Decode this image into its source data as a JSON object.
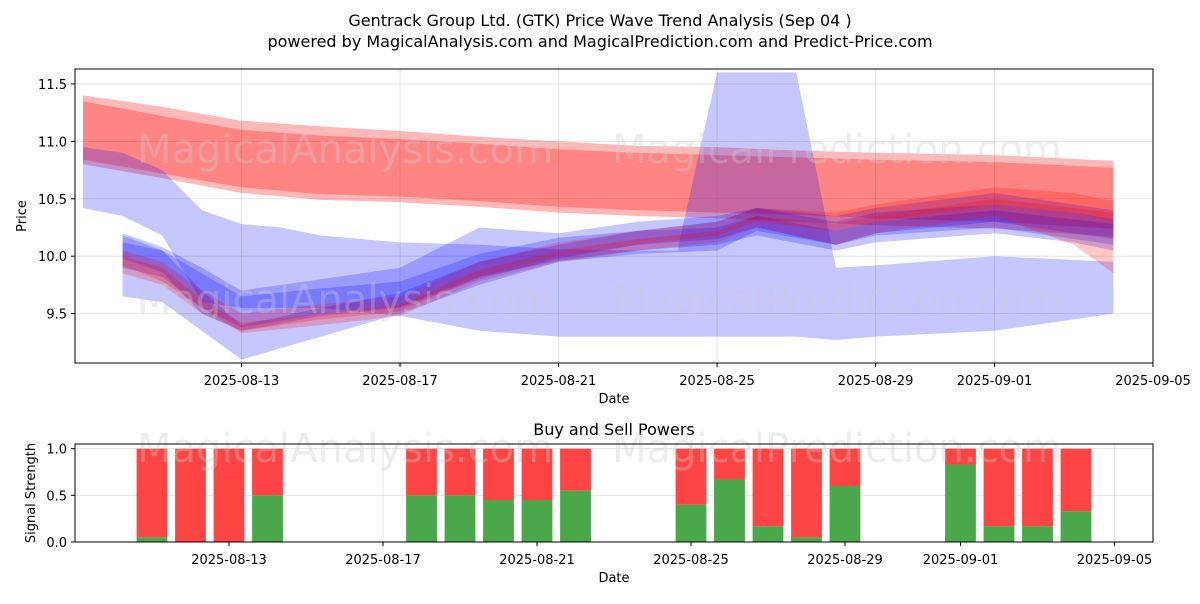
{
  "title": "Gentrack Group Ltd. (GTK) Price Wave Trend Analysis (Sep 04 )",
  "subtitle": "powered by MagicalAnalysis.com and MagicalPrediction.com and Predict-Price.com",
  "watermarks": [
    "MagicalAnalysis.com",
    "MagicalPrediction.com"
  ],
  "colors": {
    "red": "#ff0000",
    "blue": "#0000ff",
    "buy": "#4aa84a",
    "sell": "#ff4444"
  },
  "chart_data": [
    {
      "type": "area",
      "title": "",
      "xlabel": "Date",
      "ylabel": "Price",
      "xlim": [
        "2025-08-09",
        "2025-09-05"
      ],
      "ylim": [
        9.07,
        11.63
      ],
      "yticks": [
        9.5,
        10.0,
        10.5,
        11.0,
        11.5
      ],
      "ytick_labels": [
        "9.5",
        "10.0",
        "10.5",
        "11.0",
        "11.5"
      ],
      "xticks": [
        "2025-08-13",
        "2025-08-17",
        "2025-08-21",
        "2025-08-25",
        "2025-08-29",
        "2025-09-01",
        "2025-09-05"
      ],
      "grid": true,
      "series": [
        {
          "color": "red",
          "x": [
            "2025-08-09",
            "2025-08-11",
            "2025-08-13",
            "2025-08-15",
            "2025-08-17",
            "2025-08-19",
            "2025-08-21",
            "2025-08-23",
            "2025-08-25",
            "2025-08-27",
            "2025-08-29",
            "2025-09-01",
            "2025-09-04"
          ],
          "upper": [
            11.4,
            11.3,
            11.18,
            11.13,
            11.09,
            11.04,
            11.0,
            10.96,
            10.95,
            10.92,
            10.9,
            10.88,
            10.83
          ],
          "lower": [
            10.8,
            10.68,
            10.55,
            10.49,
            10.47,
            10.43,
            10.38,
            10.35,
            10.33,
            10.3,
            10.27,
            10.24,
            10.17
          ]
        },
        {
          "color": "red",
          "x": [
            "2025-08-09",
            "2025-08-11",
            "2025-08-13",
            "2025-08-15",
            "2025-08-17",
            "2025-08-19",
            "2025-08-21",
            "2025-08-23",
            "2025-08-25",
            "2025-08-27",
            "2025-08-29",
            "2025-09-01",
            "2025-09-04"
          ],
          "upper": [
            11.35,
            11.22,
            11.1,
            11.05,
            11.02,
            10.98,
            10.93,
            10.9,
            10.88,
            10.86,
            10.84,
            10.82,
            10.77
          ],
          "lower": [
            10.84,
            10.72,
            10.6,
            10.54,
            10.52,
            10.48,
            10.43,
            10.4,
            10.38,
            10.36,
            10.33,
            10.3,
            10.24
          ]
        },
        {
          "color": "blue",
          "x": [
            "2025-08-09",
            "2025-08-10",
            "2025-08-11",
            "2025-08-12",
            "2025-08-13",
            "2025-08-14",
            "2025-08-15",
            "2025-08-17",
            "2025-08-19",
            "2025-08-21",
            "2025-08-23",
            "2025-08-24",
            "2025-08-25",
            "2025-08-26",
            "2025-08-27",
            "2025-08-28",
            "2025-08-29",
            "2025-09-01",
            "2025-09-04"
          ],
          "upper": [
            10.95,
            10.9,
            10.75,
            10.4,
            10.28,
            10.25,
            10.18,
            10.12,
            10.1,
            10.06,
            10.05,
            10.05,
            11.6,
            11.6,
            11.6,
            9.9,
            9.92,
            10.0,
            9.95
          ],
          "lower": [
            10.42,
            10.35,
            10.18,
            9.6,
            9.55,
            9.55,
            9.55,
            9.48,
            9.35,
            9.3,
            9.3,
            9.3,
            9.3,
            9.3,
            9.3,
            9.27,
            9.3,
            9.35,
            9.5
          ]
        },
        {
          "color": "blue",
          "x": [
            "2025-08-10",
            "2025-08-11",
            "2025-08-12",
            "2025-08-13",
            "2025-08-15",
            "2025-08-17",
            "2025-08-19",
            "2025-08-21",
            "2025-08-23",
            "2025-08-25",
            "2025-08-26",
            "2025-08-28",
            "2025-08-29",
            "2025-09-01",
            "2025-09-03",
            "2025-09-04"
          ],
          "upper": [
            10.12,
            10.05,
            9.85,
            9.65,
            9.72,
            9.78,
            10.02,
            10.16,
            10.22,
            10.25,
            10.35,
            10.22,
            10.3,
            10.4,
            10.32,
            10.28
          ],
          "lower": [
            9.9,
            9.82,
            9.55,
            9.38,
            9.5,
            9.56,
            9.82,
            9.96,
            10.05,
            10.1,
            10.18,
            10.05,
            10.12,
            10.2,
            10.12,
            10.05
          ]
        },
        {
          "color": "blue",
          "x": [
            "2025-08-10",
            "2025-08-11",
            "2025-08-12",
            "2025-08-13",
            "2025-08-15",
            "2025-08-17",
            "2025-08-19",
            "2025-08-21",
            "2025-08-23",
            "2025-08-25",
            "2025-08-26",
            "2025-08-28",
            "2025-08-29",
            "2025-09-01",
            "2025-09-03",
            "2025-09-04"
          ],
          "upper": [
            10.2,
            10.08,
            9.9,
            9.7,
            9.8,
            9.9,
            10.25,
            10.2,
            10.3,
            10.35,
            10.42,
            10.3,
            10.38,
            10.45,
            10.38,
            10.32
          ],
          "lower": [
            9.98,
            9.86,
            9.5,
            9.35,
            9.48,
            9.55,
            9.8,
            9.98,
            10.1,
            10.15,
            10.25,
            10.1,
            10.18,
            10.25,
            10.15,
            10.1
          ]
        },
        {
          "color": "blue",
          "x": [
            "2025-08-10",
            "2025-08-11",
            "2025-08-12",
            "2025-08-13",
            "2025-08-15",
            "2025-08-17",
            "2025-08-19",
            "2025-08-21",
            "2025-08-23",
            "2025-08-25",
            "2025-08-26",
            "2025-08-28",
            "2025-08-29",
            "2025-09-01",
            "2025-09-03",
            "2025-09-04"
          ],
          "upper": [
            10.18,
            10.05,
            9.7,
            9.4,
            9.55,
            9.68,
            9.95,
            10.1,
            10.22,
            10.3,
            10.42,
            10.35,
            10.42,
            10.55,
            10.45,
            10.4
          ],
          "lower": [
            9.65,
            9.6,
            9.35,
            9.1,
            9.3,
            9.5,
            9.75,
            9.95,
            10.02,
            10.05,
            10.22,
            10.1,
            10.2,
            10.3,
            10.2,
            10.15
          ]
        },
        {
          "color": "red",
          "x": [
            "2025-08-10",
            "2025-08-11",
            "2025-08-12",
            "2025-08-13",
            "2025-08-15",
            "2025-08-17",
            "2025-08-19",
            "2025-08-21",
            "2025-08-23",
            "2025-08-25",
            "2025-08-26",
            "2025-08-28",
            "2025-08-29",
            "2025-09-01",
            "2025-09-03",
            "2025-09-04"
          ],
          "upper": [
            10.05,
            9.95,
            9.7,
            9.5,
            9.58,
            9.65,
            9.95,
            10.12,
            10.22,
            10.3,
            10.42,
            10.38,
            10.45,
            10.6,
            10.55,
            10.48
          ],
          "lower": [
            9.85,
            9.75,
            9.5,
            9.35,
            9.45,
            9.52,
            9.82,
            10.0,
            10.1,
            10.18,
            10.3,
            10.22,
            10.3,
            10.45,
            10.38,
            10.3
          ]
        },
        {
          "color": "red",
          "x": [
            "2025-08-10",
            "2025-08-11",
            "2025-08-12",
            "2025-08-13",
            "2025-08-15",
            "2025-08-17",
            "2025-08-19",
            "2025-08-21",
            "2025-08-23",
            "2025-08-25",
            "2025-08-26",
            "2025-08-28",
            "2025-08-29",
            "2025-09-01",
            "2025-09-03",
            "2025-09-04"
          ],
          "upper": [
            10.0,
            9.9,
            9.62,
            9.42,
            9.5,
            9.58,
            9.88,
            10.05,
            10.15,
            10.22,
            10.35,
            10.28,
            10.35,
            10.5,
            10.42,
            10.38
          ],
          "lower": [
            9.92,
            9.78,
            9.55,
            9.33,
            9.4,
            9.48,
            9.78,
            9.95,
            10.05,
            10.12,
            10.25,
            10.1,
            10.2,
            10.35,
            10.1,
            9.85
          ]
        }
      ]
    },
    {
      "type": "bar",
      "title": "Buy and Sell Powers",
      "xlabel": "Date",
      "ylabel": "Signal Strength",
      "ylim": [
        0,
        1.05
      ],
      "yticks": [
        0.0,
        0.5,
        1.0
      ],
      "ytick_labels": [
        "0.0",
        "0.5",
        "1.0"
      ],
      "xticks": [
        "2025-08-13",
        "2025-08-17",
        "2025-08-21",
        "2025-08-25",
        "2025-08-29",
        "2025-09-01",
        "2025-09-05"
      ],
      "grid": true,
      "categories": [
        "2025-08-11",
        "2025-08-12",
        "2025-08-13",
        "2025-08-14",
        "2025-08-18",
        "2025-08-19",
        "2025-08-20",
        "2025-08-21",
        "2025-08-22",
        "2025-08-25",
        "2025-08-26",
        "2025-08-27",
        "2025-08-28",
        "2025-08-29",
        "2025-09-01",
        "2025-09-02",
        "2025-09-03",
        "2025-09-04"
      ],
      "series": [
        {
          "name": "Buy",
          "values": [
            0.05,
            0.0,
            0.0,
            0.5,
            0.5,
            0.5,
            0.45,
            0.45,
            0.55,
            0.4,
            0.67,
            0.17,
            0.05,
            0.6,
            0.83,
            0.17,
            0.17,
            0.33
          ]
        },
        {
          "name": "Sell",
          "values": [
            0.95,
            1.0,
            1.0,
            0.5,
            0.5,
            0.5,
            0.55,
            0.55,
            0.45,
            0.6,
            0.33,
            0.83,
            0.95,
            0.4,
            0.17,
            0.83,
            0.83,
            0.67
          ]
        }
      ]
    }
  ]
}
